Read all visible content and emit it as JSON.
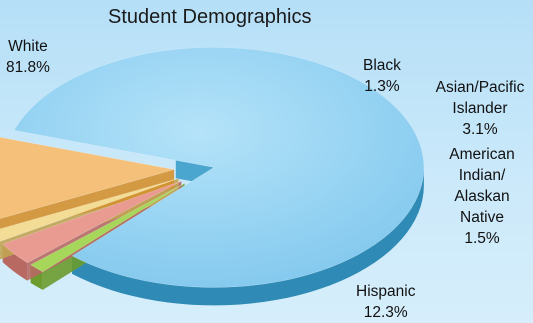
{
  "chart_data": {
    "type": "pie",
    "style": "3d-exploded",
    "title": "Student Demographics",
    "slices": [
      {
        "label": "White",
        "value": 81.8,
        "display_value": "81.8%",
        "color": "#8fd0f2",
        "side_color": "#2f8bb5"
      },
      {
        "label": "Black",
        "value": 1.3,
        "display_value": "1.3%",
        "color": "#a6d65a",
        "side_color": "#6c9b2e"
      },
      {
        "label": "Asian/Pacific Islander",
        "value": 3.1,
        "display_value": "3.1%",
        "color": "#e99b92",
        "side_color": "#b86a62"
      },
      {
        "label": "American Indian/ Alaskan Native",
        "value": 1.5,
        "display_value": "1.5%",
        "color": "#f3dc96",
        "side_color": "#c1a452"
      },
      {
        "label": "Hispanic",
        "value": 12.3,
        "display_value": "12.3%",
        "color": "#f5c079",
        "side_color": "#d4902f"
      }
    ]
  }
}
